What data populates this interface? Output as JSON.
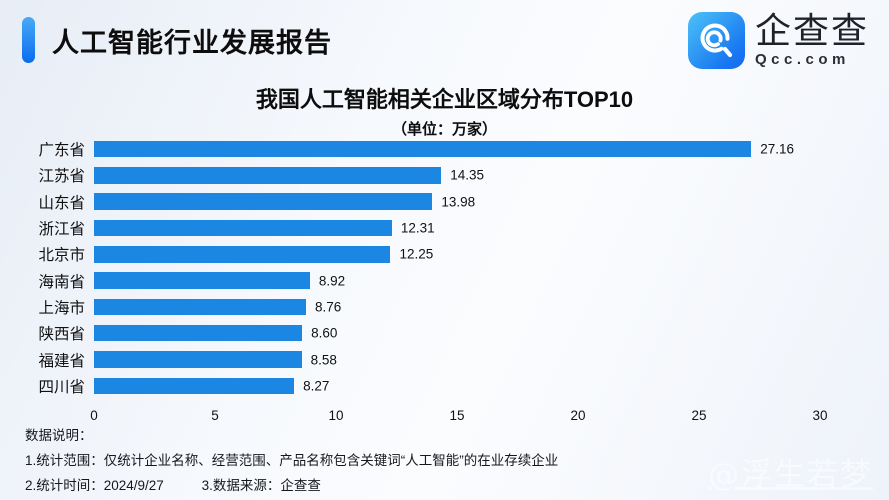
{
  "header": {
    "title": "人工智能行业发展报告",
    "accent_color": "#0a6cee",
    "logo": {
      "name": "企查查",
      "domain": "Qcc.com",
      "icon": "qcc-magnifier-icon",
      "icon_color": "#1a79f2"
    }
  },
  "chart_data": {
    "type": "bar",
    "orientation": "horizontal",
    "title": "我国人工智能相关企业区域分布TOP10",
    "subtitle": "（单位：万家）",
    "unit": "万家",
    "categories": [
      "广东省",
      "江苏省",
      "山东省",
      "浙江省",
      "北京市",
      "海南省",
      "上海市",
      "陕西省",
      "福建省",
      "四川省"
    ],
    "values": [
      27.16,
      14.35,
      13.98,
      12.31,
      12.25,
      8.92,
      8.76,
      8.6,
      8.58,
      8.27
    ],
    "value_labels": [
      "27.16",
      "14.35",
      "13.98",
      "12.31",
      "12.25",
      "8.92",
      "8.76",
      "8.60",
      "8.58",
      "8.27"
    ],
    "xlim": [
      0,
      30
    ],
    "x_ticks": [
      0,
      5,
      10,
      15,
      20,
      25,
      30
    ],
    "bar_color": "#1b87e3",
    "grid": false,
    "legend": "none"
  },
  "notes": {
    "heading": "数据说明：",
    "line1": "1.统计范围：仅统计企业名称、经营范围、产品名称包含关键词“人工智能”的在业存续企业",
    "line2_part1": "2.统计时间：2024/9/27",
    "line2_part2": "3.数据来源：企查查"
  },
  "watermark": "@浮生若梦"
}
